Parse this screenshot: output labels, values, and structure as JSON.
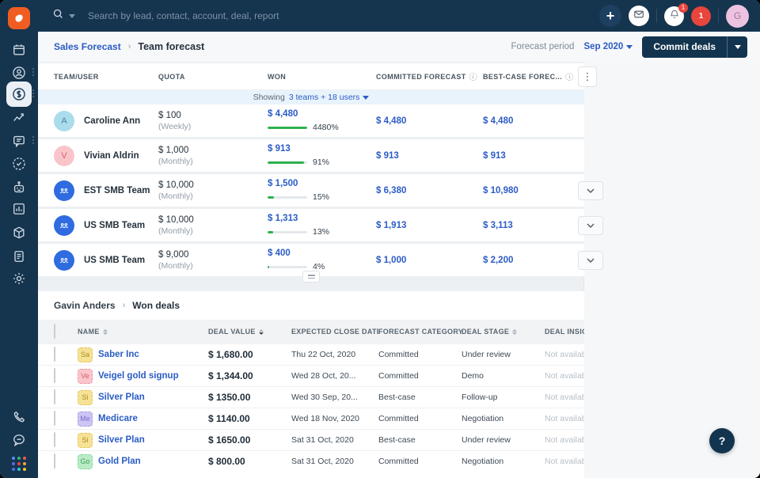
{
  "colors": {
    "navy": "#15344e",
    "brand_orange": "#ef5d23",
    "link_blue": "#2b5cc5",
    "progress_green": "#2db14e",
    "alert_red": "#e8453c",
    "showing_row_bg": "#e9f3fc"
  },
  "topbar": {
    "search_placeholder": "Search by lead, contact, account, deal, report",
    "plus_label": "+",
    "bell_badge": "1",
    "alert_count": "1",
    "avatar_initial": "G"
  },
  "breadcrumb": {
    "parent": "Sales Forecast",
    "separator": "›",
    "current": "Team forecast"
  },
  "forecast_controls": {
    "period_label": "Forecast period",
    "period_value": "Sep 2020",
    "commit_button": "Commit deals"
  },
  "forecast_table": {
    "columns": {
      "team": "TEAM/USER",
      "quota": "QUOTA",
      "won": "WON",
      "committed": "COMMITTED FORECAST",
      "best": "BEST-CASE FOREC...",
      "info_icon": "ⓘ",
      "kebab": "⋮"
    },
    "showing_prefix": "Showing",
    "showing_link": "3 teams + 18 users",
    "rows": [
      {
        "initial": "A",
        "name": "Caroline Ann",
        "quota": "$ 100",
        "period": "(Weekly)",
        "won": "$ 4,480",
        "pct": "4480%",
        "pct_width": 100,
        "committed": "$ 4,480",
        "best": "$ 4,480"
      },
      {
        "initial": "V",
        "name": "Vivian Aldrin",
        "quota": "$ 1,000",
        "period": "(Monthly)",
        "won": "$ 913",
        "pct": "91%",
        "pct_width": 91,
        "committed": "$ 913",
        "best": "$ 913"
      },
      {
        "initial": "",
        "name": "EST SMB Team",
        "quota": "$ 10,000",
        "period": "(Monthly)",
        "won": "$ 1,500",
        "pct": "15%",
        "pct_width": 15,
        "committed": "$ 6,380",
        "best": "$ 10,980"
      },
      {
        "initial": "",
        "name": "US SMB Team",
        "quota": "$ 10,000",
        "period": "(Monthly)",
        "won": "$ 1,313",
        "pct": "13%",
        "pct_width": 13,
        "committed": "$ 1,913",
        "best": "$ 3,113"
      },
      {
        "initial": "",
        "name": "US SMB Team",
        "quota": "$ 9,000",
        "period": "(Monthly)",
        "won": "$ 400",
        "pct": "4%",
        "pct_width": 4,
        "committed": "$ 1,000",
        "best": "$ 2,200"
      }
    ]
  },
  "deals_section": {
    "breadcrumb_parent": "Gavin Anders",
    "breadcrumb_separator": "›",
    "breadcrumb_current": "Won deals",
    "columns": {
      "name": "NAME",
      "value": "DEAL VALUE",
      "date": "EXPECTED CLOSE DATE",
      "category": "FORECAST CATEGORY",
      "stage": "DEAL STAGE",
      "insight": "DEAL INSIG"
    },
    "rows": [
      {
        "initials": "Sa",
        "name": "Saber Inc",
        "value": "$ 1,680.00",
        "date": "Thu 22 Oct, 2020",
        "category": "Committed",
        "stage": "Under review",
        "insight": "Not availab"
      },
      {
        "initials": "Ve",
        "name": "Veigel gold signup",
        "value": "$ 1,344.00",
        "date": "Wed 28 Oct, 20...",
        "category": "Committed",
        "stage": "Demo",
        "insight": "Not availab"
      },
      {
        "initials": "Si",
        "name": "Silver Plan",
        "value": "$ 1350.00",
        "date": "Wed 30 Sep, 20...",
        "category": "Best-case",
        "stage": "Follow-up",
        "insight": "Not availab"
      },
      {
        "initials": "Me",
        "name": "Medicare",
        "value": "$ 1140.00",
        "date": "Wed 18 Nov, 2020",
        "category": "Committed",
        "stage": "Negotiation",
        "insight": "Not availab"
      },
      {
        "initials": "Si",
        "name": "Silver Plan",
        "value": "$ 1650.00",
        "date": "Sat 31 Oct, 2020",
        "category": "Best-case",
        "stage": "Under review",
        "insight": "Not availab"
      },
      {
        "initials": "Go",
        "name": "Gold Plan",
        "value": "$ 800.00",
        "date": "Sat 31 Oct, 2020",
        "category": "Committed",
        "stage": "Negotiation",
        "insight": "Not availab"
      }
    ]
  },
  "help_button": "?"
}
